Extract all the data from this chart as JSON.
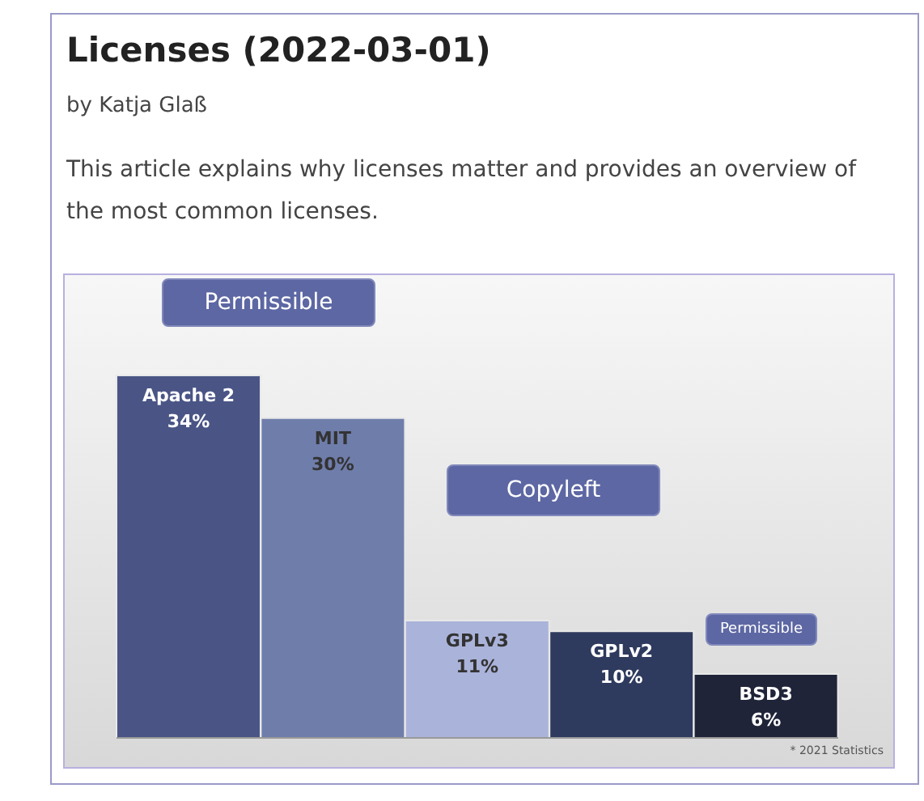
{
  "chart_data": {
    "type": "bar",
    "title": "Licenses (2022-03-01)",
    "subtitle": "by Katja Glaß",
    "annotations": [
      "This article explains why licenses matter and provides an overview of the most common licenses.",
      "Permissible",
      "Copyleft",
      "Permissible",
      "* 2021 Statistics"
    ],
    "categories": [
      "Apache 2",
      "MIT",
      "GPLv3",
      "GPLv2",
      "BSD3"
    ],
    "values": [
      34,
      30,
      11,
      10,
      6
    ],
    "value_labels": [
      "34%",
      "30%",
      "11%",
      "10%",
      "6%"
    ],
    "colors": [
      "#4a5586",
      "#6f7dab",
      "#aab3da",
      "#2e3a5e",
      "#1f2438"
    ],
    "tick_labels": false
  }
}
